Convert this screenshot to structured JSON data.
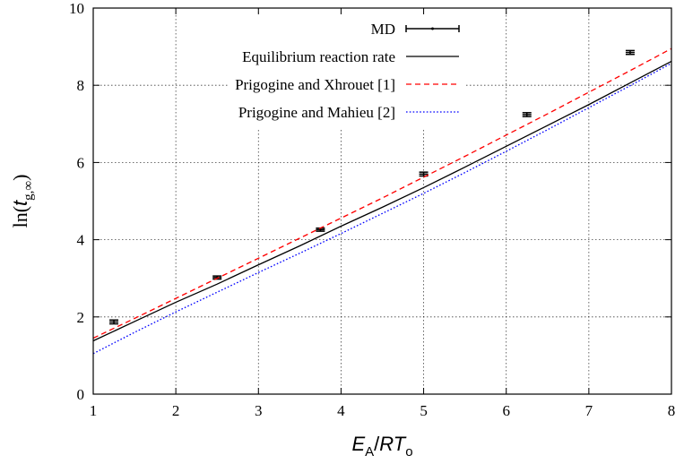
{
  "chart_data": {
    "type": "line",
    "x_ticks": [
      "1",
      "2",
      "3",
      "4",
      "5",
      "6",
      "7",
      "8"
    ],
    "y_ticks": [
      "0",
      "2",
      "4",
      "6",
      "8",
      "10"
    ],
    "xlim": [
      1,
      8
    ],
    "ylim": [
      0,
      10
    ],
    "grid": true,
    "legend_position": "top-left",
    "xlabel": {
      "main": "E",
      "sub1": "A",
      "slash": "/",
      "main2": "RT",
      "sub2": "o"
    },
    "ylabel": {
      "prefix": "ln(",
      "var": "t",
      "sub": "g,∞",
      "suffix": ")"
    },
    "series": [
      {
        "name": "MD",
        "kind": "errorbar",
        "color": "#000000",
        "x": [
          1.25,
          2.5,
          3.75,
          5.0,
          6.25,
          7.5
        ],
        "y": [
          1.87,
          3.02,
          4.26,
          5.7,
          7.24,
          8.85
        ],
        "yerr": [
          0.05,
          0.04,
          0.04,
          0.05,
          0.05,
          0.05
        ]
      },
      {
        "name": "Equilibrium reaction rate",
        "kind": "line",
        "style": "solid",
        "color": "#000000",
        "x": [
          1,
          1.5,
          2,
          2.5,
          3,
          3.5,
          4,
          4.5,
          5,
          5.5,
          6,
          6.5,
          7,
          7.5,
          8
        ],
        "y": [
          1.38,
          1.88,
          2.38,
          2.85,
          3.35,
          3.84,
          4.35,
          4.84,
          5.35,
          5.88,
          6.42,
          6.96,
          7.5,
          8.06,
          8.62
        ]
      },
      {
        "name": "Prigogine and Xhrouet [1]",
        "kind": "line",
        "style": "dashed",
        "color": "#ff0000",
        "x": [
          1,
          1.5,
          2,
          2.5,
          3,
          3.5,
          4,
          4.5,
          5,
          5.5,
          6,
          6.5,
          7,
          7.5,
          8
        ],
        "y": [
          1.45,
          1.96,
          2.48,
          3.0,
          3.52,
          4.04,
          4.56,
          5.08,
          5.62,
          6.16,
          6.71,
          7.26,
          7.82,
          8.38,
          8.95
        ]
      },
      {
        "name": "Prigogine and Mahieu [2]",
        "kind": "line",
        "style": "dotted",
        "color": "#0000ff",
        "x": [
          1,
          1.5,
          2,
          2.5,
          3,
          3.5,
          4,
          4.5,
          5,
          5.5,
          6,
          6.5,
          7,
          7.5,
          8
        ],
        "y": [
          1.05,
          1.6,
          2.13,
          2.64,
          3.15,
          3.65,
          4.16,
          4.68,
          5.2,
          5.74,
          6.29,
          6.85,
          7.42,
          7.99,
          8.57
        ]
      }
    ]
  }
}
